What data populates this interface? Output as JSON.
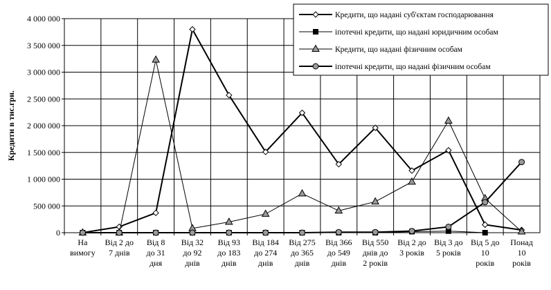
{
  "chart_data": {
    "type": "line",
    "ylabel": "Кредити в тис.грн.",
    "ylim": [
      0,
      4000000
    ],
    "yticks": [
      0,
      500000,
      1000000,
      1500000,
      2000000,
      2500000,
      3000000,
      3500000,
      4000000
    ],
    "ytick_labels": [
      "0",
      "500 000",
      "1 000 000",
      "1 500 000",
      "2 000 000",
      "2 500 000",
      "3 000 000",
      "3 500 000",
      "4 000 000"
    ],
    "grid": true,
    "legend_position": "top-right",
    "categories": [
      [
        "На",
        "вимогу"
      ],
      [
        "Від 2 до",
        "7 днів"
      ],
      [
        "Від 8",
        "до 31",
        "дня"
      ],
      [
        "Від 32",
        "до 92",
        "днів"
      ],
      [
        "Від 93",
        "до 183",
        "днів"
      ],
      [
        "Від 184",
        "до 274",
        "днів"
      ],
      [
        "Від 275",
        "до 365",
        "днів"
      ],
      [
        "Від 366",
        "до 549",
        "днів"
      ],
      [
        "Від 550",
        "днів до",
        "2 років"
      ],
      [
        "Від 2 до",
        "3 років"
      ],
      [
        "Від 3 до",
        "5 років"
      ],
      [
        "Від 5 до",
        "10",
        "років"
      ],
      [
        "Понад",
        "10",
        "років"
      ]
    ],
    "series": [
      {
        "name": "Кредити, що надані суб'єктам господарювання",
        "marker": "diamond",
        "line_width": 2,
        "values": [
          0,
          110000,
          370000,
          3800000,
          2570000,
          1510000,
          2240000,
          1280000,
          1960000,
          1160000,
          1540000,
          150000,
          50000
        ]
      },
      {
        "name": "іпотечні кредити, що надані юридичним особам",
        "marker": "square",
        "line_width": 1,
        "values": [
          0,
          0,
          0,
          0,
          0,
          0,
          0,
          0,
          0,
          20000,
          30000,
          0,
          null
        ]
      },
      {
        "name": "Кредити, що надані фізичним особам",
        "marker": "triangle",
        "line_width": 1,
        "values": [
          0,
          0,
          3230000,
          80000,
          200000,
          350000,
          730000,
          410000,
          580000,
          950000,
          2090000,
          640000,
          20000
        ]
      },
      {
        "name": "іпотечні кредити, що надані фізичним особам",
        "marker": "circle",
        "line_width": 2,
        "values": [
          0,
          0,
          0,
          0,
          0,
          0,
          0,
          10000,
          10000,
          30000,
          110000,
          570000,
          1320000
        ]
      }
    ]
  }
}
